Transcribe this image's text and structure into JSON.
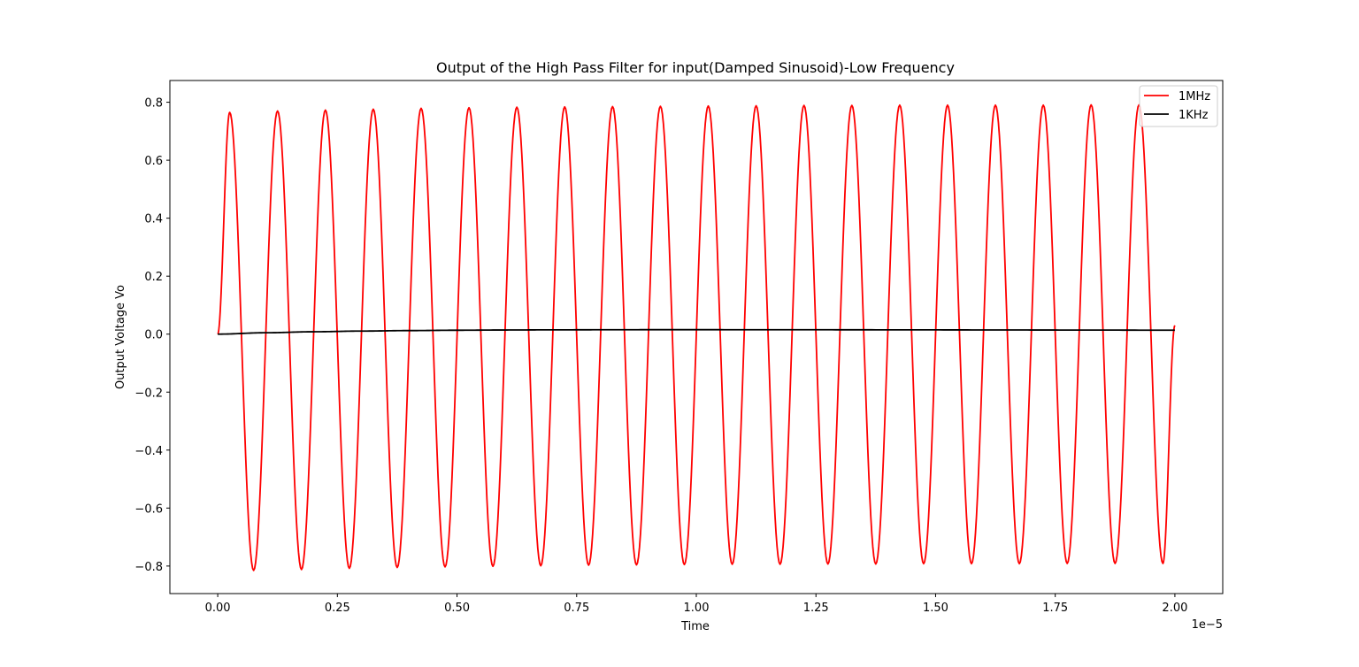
{
  "chart_data": {
    "type": "line",
    "title": "Output of the High Pass Filter for input(Damped Sinusoid)-Low Frequency",
    "xlabel": "Time",
    "ylabel": "Output Voltage Vo",
    "x_offset_label": "1e−5",
    "xlim": [
      -1e-06,
      2.1e-05
    ],
    "ylim": [
      -0.895,
      0.875
    ],
    "x_ticks": [
      0,
      2.5e-06,
      5e-06,
      7.5e-06,
      1e-05,
      1.25e-05,
      1.5e-05,
      1.75e-05,
      2e-05
    ],
    "x_tick_labels": [
      "0.00",
      "0.25",
      "0.50",
      "0.75",
      "1.00",
      "1.25",
      "1.50",
      "1.75",
      "2.00"
    ],
    "y_ticks": [
      -0.8,
      -0.6,
      -0.4,
      -0.2,
      0.0,
      0.2,
      0.4,
      0.6,
      0.8
    ],
    "y_tick_labels": [
      "−0.8",
      "−0.6",
      "−0.4",
      "−0.2",
      "0.0",
      "0.2",
      "0.4",
      "0.6",
      "0.8"
    ],
    "grid": false,
    "legend_position": "top-right",
    "series": [
      {
        "name": "1MHz",
        "color": "#ff0000",
        "x": [
          0,
          2.5e-07,
          7.5e-07,
          1.25e-06,
          1.75e-06,
          2.25e-06,
          2.75e-06,
          3.25e-06,
          3.75e-06,
          4.25e-06,
          4.75e-06,
          5.25e-06,
          5.75e-06,
          6.25e-06,
          6.75e-06,
          7.25e-06,
          7.75e-06,
          8.25e-06,
          8.75e-06,
          9.25e-06,
          9.75e-06,
          1.025e-05,
          1.075e-05,
          1.125e-05,
          1.175e-05,
          1.225e-05,
          1.275e-05,
          1.325e-05,
          1.375e-05,
          1.425e-05,
          1.475e-05,
          1.525e-05,
          1.575e-05,
          1.625e-05,
          1.675e-05,
          1.725e-05,
          1.775e-05,
          1.825e-05,
          1.875e-05,
          1.925e-05,
          1.975e-05,
          2e-05
        ],
        "y": [
          0.0,
          0.765,
          -0.815,
          0.77,
          -0.812,
          0.773,
          -0.808,
          0.776,
          -0.805,
          0.779,
          -0.803,
          0.781,
          -0.801,
          0.783,
          -0.799,
          0.784,
          -0.797,
          0.785,
          -0.796,
          0.786,
          -0.795,
          0.787,
          -0.794,
          0.788,
          -0.794,
          0.789,
          -0.793,
          0.789,
          -0.793,
          0.79,
          -0.792,
          0.79,
          -0.792,
          0.79,
          -0.792,
          0.79,
          -0.791,
          0.791,
          -0.791,
          0.791,
          -0.791,
          0.03
        ]
      },
      {
        "name": "1KHz",
        "color": "#000000",
        "x": [
          0,
          1e-06,
          2e-06,
          3e-06,
          4e-06,
          5e-06,
          6e-06,
          7e-06,
          8e-06,
          9e-06,
          1e-05,
          1.2e-05,
          1.4e-05,
          1.6e-05,
          1.8e-05,
          2e-05
        ],
        "y": [
          0.0,
          0.0048,
          0.0082,
          0.0106,
          0.0123,
          0.0135,
          0.0143,
          0.0148,
          0.0151,
          0.0153,
          0.0153,
          0.0152,
          0.0149,
          0.0145,
          0.0141,
          0.0136
        ]
      }
    ]
  }
}
